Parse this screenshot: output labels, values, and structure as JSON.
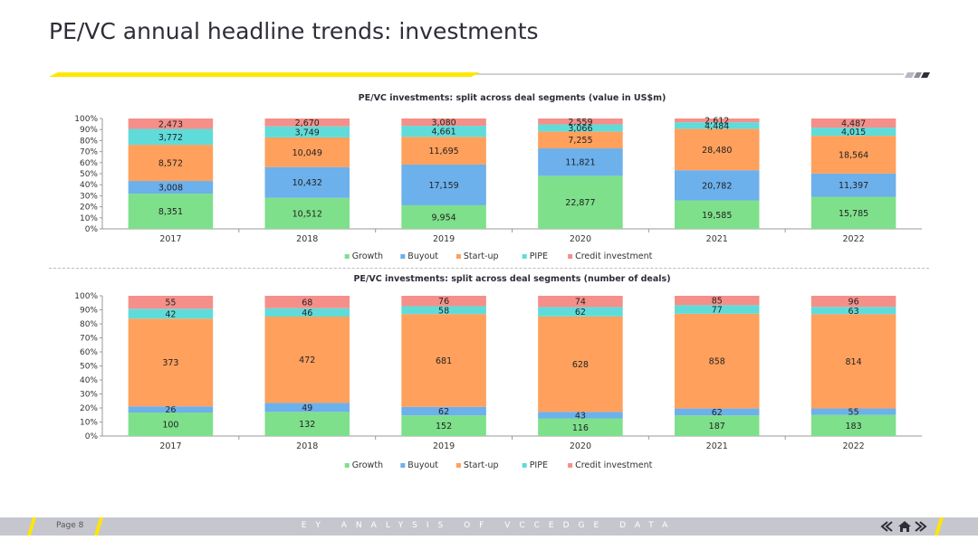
{
  "page_title": "PE/VC annual headline trends: investments",
  "footer": {
    "page_label": "Page 8",
    "center_text": "EY ANALYSIS OF VCCEDGE DATA",
    "nav_prev_icon": "double-chevron-left-icon",
    "nav_home_icon": "home-icon",
    "nav_next_icon": "double-chevron-right-icon"
  },
  "colors": {
    "Growth": "#7ee08b",
    "Buyout": "#6cb0ec",
    "Start-up": "#ffa05c",
    "PIPE": "#5fdcd9",
    "Credit investment": "#f58f8a",
    "accent_yellow": "#ffe600",
    "footer_bg": "#c6c6cf"
  },
  "chart_data": [
    {
      "type": "bar",
      "stacked": "percent",
      "title": "PE/VC investments: split across deal segments (value in US$m)",
      "categories": [
        "2017",
        "2018",
        "2019",
        "2020",
        "2021",
        "2022"
      ],
      "y_ticks": [
        "0%",
        "10%",
        "20%",
        "30%",
        "40%",
        "50%",
        "60%",
        "70%",
        "80%",
        "90%",
        "100%"
      ],
      "ylim": [
        0,
        100
      ],
      "legend_position": "bottom",
      "series": [
        {
          "name": "Growth",
          "values": [
            8351,
            10512,
            9954,
            22877,
            19585,
            15785
          ],
          "labels": [
            "8,351",
            "10,512",
            "9,954",
            "22,877",
            "19,585",
            "15,785"
          ]
        },
        {
          "name": "Buyout",
          "values": [
            3008,
            10432,
            17159,
            11821,
            20782,
            11397
          ],
          "labels": [
            "3,008",
            "10,432",
            "17,159",
            "11,821",
            "20,782",
            "11,397"
          ]
        },
        {
          "name": "Start-up",
          "values": [
            8572,
            10049,
            11695,
            7255,
            28480,
            18564
          ],
          "labels": [
            "8,572",
            "10,049",
            "11,695",
            "7,255",
            "28,480",
            "18,564"
          ]
        },
        {
          "name": "PIPE",
          "values": [
            3772,
            3749,
            4661,
            3066,
            4484,
            4015
          ],
          "labels": [
            "3,772",
            "3,749",
            "4,661",
            "3,066",
            "4,484",
            "4,015"
          ]
        },
        {
          "name": "Credit investment",
          "values": [
            2473,
            2670,
            3080,
            2559,
            2612,
            4487
          ],
          "labels": [
            "2,473",
            "2,670",
            "3,080",
            "2,559",
            "2,612",
            "4,487"
          ]
        }
      ]
    },
    {
      "type": "bar",
      "stacked": "percent",
      "title": "PE/VC investments: split across deal segments (number of deals)",
      "categories": [
        "2017",
        "2018",
        "2019",
        "2020",
        "2021",
        "2022"
      ],
      "y_ticks": [
        "0%",
        "10%",
        "20%",
        "30%",
        "40%",
        "50%",
        "60%",
        "70%",
        "80%",
        "90%",
        "100%"
      ],
      "ylim": [
        0,
        100
      ],
      "legend_position": "bottom",
      "series": [
        {
          "name": "Growth",
          "values": [
            100,
            132,
            152,
            116,
            187,
            183
          ],
          "labels": [
            "100",
            "132",
            "152",
            "116",
            "187",
            "183"
          ]
        },
        {
          "name": "Buyout",
          "values": [
            26,
            49,
            62,
            43,
            62,
            55
          ],
          "labels": [
            "26",
            "49",
            "62",
            "43",
            "62",
            "55"
          ]
        },
        {
          "name": "Start-up",
          "values": [
            373,
            472,
            681,
            628,
            858,
            814
          ],
          "labels": [
            "373",
            "472",
            "681",
            "628",
            "858",
            "814"
          ]
        },
        {
          "name": "PIPE",
          "values": [
            42,
            46,
            58,
            62,
            77,
            63
          ],
          "labels": [
            "42",
            "46",
            "58",
            "62",
            "77",
            "63"
          ]
        },
        {
          "name": "Credit investment",
          "values": [
            55,
            68,
            76,
            74,
            85,
            96
          ],
          "labels": [
            "55",
            "68",
            "76",
            "74",
            "85",
            "96"
          ]
        }
      ]
    }
  ]
}
